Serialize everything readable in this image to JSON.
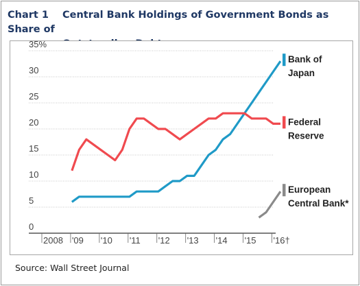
{
  "header": {
    "chart_number": "Chart 1",
    "title_line1": "Central Bank Holdings of Government Bonds as Share of",
    "title_line2": "Outstanding Debt"
  },
  "footer": {
    "source": "Source: Wall Street Journal"
  },
  "chart_data": {
    "type": "line",
    "title": "Central Bank Holdings of Government Bonds as Share of Outstanding Debt",
    "ylim": [
      0,
      35
    ],
    "yticks": [
      0,
      5,
      10,
      15,
      20,
      25,
      30,
      35
    ],
    "ytick_labels": [
      "0",
      "5",
      "10",
      "15",
      "20",
      "25",
      "30",
      "35%"
    ],
    "xlim": [
      2008,
      2016.25
    ],
    "xtick_labels": [
      {
        "x": 2008,
        "label": "2008"
      },
      {
        "x": 2009,
        "label": "'09"
      },
      {
        "x": 2010,
        "label": "'10"
      },
      {
        "x": 2011,
        "label": "'11"
      },
      {
        "x": 2012,
        "label": "'12"
      },
      {
        "x": 2013,
        "label": "'13"
      },
      {
        "x": 2014,
        "label": "'14"
      },
      {
        "x": 2015,
        "label": "'15"
      },
      {
        "x": 2016,
        "label": "'16†"
      }
    ],
    "grid": "horizontal",
    "legend": "right, inline at line ends",
    "series": [
      {
        "name": "Bank of Japan",
        "label_lines": [
          "Bank of",
          "Japan"
        ],
        "color": "#1f9ac7",
        "x": [
          2009.0,
          2009.25,
          2009.5,
          2009.75,
          2010.0,
          2010.25,
          2010.5,
          2010.75,
          2011.0,
          2011.25,
          2011.5,
          2011.75,
          2012.0,
          2012.25,
          2012.5,
          2012.75,
          2013.0,
          2013.25,
          2013.5,
          2013.75,
          2014.0,
          2014.25,
          2014.5,
          2014.75,
          2015.0,
          2015.25,
          2015.5,
          2015.75,
          2016.0,
          2016.25
        ],
        "y": [
          6,
          7,
          7,
          7,
          7,
          7,
          7,
          7,
          7,
          8,
          8,
          8,
          8,
          9,
          10,
          10,
          11,
          11,
          13,
          15,
          16,
          18,
          19,
          21,
          23,
          25,
          27,
          29,
          31,
          33
        ]
      },
      {
        "name": "Federal Reserve",
        "label_lines": [
          "Federal",
          "Reserve"
        ],
        "color": "#f04a4f",
        "x": [
          2009.0,
          2009.25,
          2009.5,
          2009.75,
          2010.0,
          2010.25,
          2010.5,
          2010.75,
          2011.0,
          2011.25,
          2011.5,
          2011.75,
          2012.0,
          2012.25,
          2012.5,
          2012.75,
          2013.0,
          2013.25,
          2013.5,
          2013.75,
          2014.0,
          2014.25,
          2014.5,
          2014.75,
          2015.0,
          2015.25,
          2015.5,
          2015.75,
          2016.0,
          2016.25
        ],
        "y": [
          12,
          16,
          18,
          17,
          16,
          15,
          14,
          16,
          20,
          22,
          22,
          21,
          20,
          20,
          19,
          18,
          19,
          20,
          21,
          22,
          22,
          23,
          23,
          23,
          23,
          22,
          22,
          22,
          21,
          21
        ]
      },
      {
        "name": "European Central Bank",
        "label_lines": [
          "European",
          "Central Bank*"
        ],
        "color": "#8a8a8a",
        "x": [
          2015.5,
          2015.75,
          2016.0,
          2016.25
        ],
        "y": [
          3,
          4,
          6,
          8
        ]
      }
    ]
  }
}
